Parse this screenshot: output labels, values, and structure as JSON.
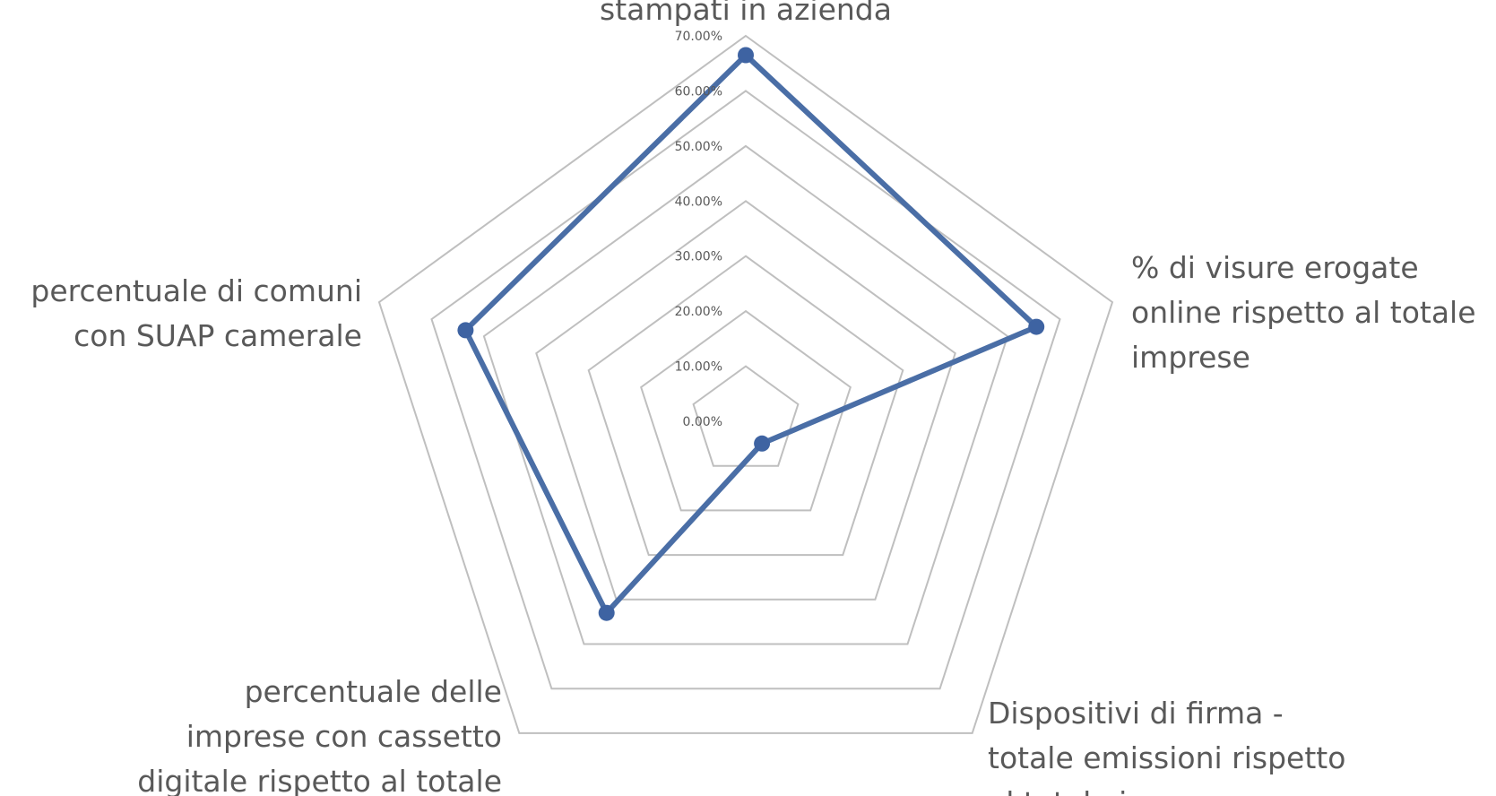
{
  "chart_data": {
    "type": "radar",
    "categories": [
      "stampati in azienda",
      "% di visure erogate online rispetto al totale imprese",
      "Dispositivi di firma - totale emissioni rispetto al totale imprese",
      "percentuale delle imprese con cassetto digitale rispetto al totale",
      "percentuale di comuni con SUAP camerale"
    ],
    "category_lines": [
      [
        "stampati in azienda"
      ],
      [
        "% di visure erogate",
        "online rispetto al totale",
        "imprese"
      ],
      [
        "Dispositivi di firma -",
        "totale emissioni rispetto",
        "al totale imprese"
      ],
      [
        "percentuale delle",
        "imprese con cassetto",
        "digitale rispetto al totale"
      ],
      [
        "percentuale di comuni",
        "con SUAP camerale"
      ]
    ],
    "tick_labels": [
      "0.00%",
      "10.00%",
      "20.00%",
      "30.00%",
      "40.00%",
      "50.00%",
      "60.00%",
      "70.00%"
    ],
    "ylim": [
      0,
      70
    ],
    "series": [
      {
        "values": [
          66.5,
          55.5,
          5.0,
          43.0,
          53.5
        ],
        "color": "#4a6ea6"
      }
    ],
    "legend": "none",
    "grid": true
  }
}
